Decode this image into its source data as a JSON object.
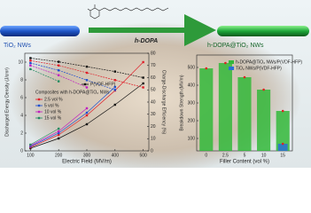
{
  "top": {
    "left_label": "TiO₂ NWs",
    "arrow_label": "h-DOPA",
    "right_label": "h-DOPA@TiO₂ NWs"
  },
  "chart_data": [
    {
      "type": "line",
      "x_label": "Electric Field (MV/m)",
      "y_label": "Discharged Energy Density (J/cm³)",
      "y2_label": "Charge-Discharge Efficiency (%)",
      "legend_heading": "Composites with h-DOPA@TiO₂ NWs",
      "x": [
        100,
        200,
        300,
        400,
        500
      ],
      "xlim": [
        80,
        520
      ],
      "xticks": [
        100,
        200,
        300,
        400,
        500
      ],
      "ylim": [
        0,
        11
      ],
      "yticks": [
        0,
        2,
        4,
        6,
        8,
        10
      ],
      "y2lim": [
        0,
        80
      ],
      "y2ticks": [
        0,
        10,
        20,
        30,
        40,
        50,
        60,
        70,
        80
      ],
      "series": [
        {
          "name": "P(VDF-HFP)",
          "color": "#111111",
          "values": [
            0.3,
            1.4,
            3.0,
            5.2,
            7.6
          ],
          "efficiency_values": [
            76,
            73,
            69,
            65,
            60
          ]
        },
        {
          "name": "2.5 vol %",
          "color": "#e0202a",
          "values": [
            0.4,
            1.8,
            4.0,
            6.8,
            10.0
          ],
          "efficiency_values": [
            74,
            70,
            64,
            58,
            52
          ]
        },
        {
          "name": "5 vol %",
          "color": "#2050d0",
          "values": [
            0.5,
            2.0,
            4.3,
            7.2,
            null
          ],
          "efficiency_values": [
            72,
            66,
            58,
            50,
            null
          ]
        },
        {
          "name": "10 vol %",
          "color": "#c020c0",
          "values": [
            0.6,
            2.2,
            4.8,
            null,
            null
          ],
          "efficiency_values": [
            70,
            62,
            52,
            null,
            null
          ]
        },
        {
          "name": "15 vol %",
          "color": "#208a60",
          "values": [
            0.7,
            2.5,
            null,
            null,
            null
          ],
          "efficiency_values": [
            67,
            57,
            null,
            null,
            null
          ]
        }
      ]
    },
    {
      "type": "bar",
      "x_label": "Filler Content (vol %)",
      "y_label": "Breakdown Strength (MV/m)",
      "categories": [
        "0",
        "2.5",
        "5",
        "10",
        "15"
      ],
      "ylim": [
        30,
        570
      ],
      "yticks": [
        100,
        200,
        300,
        400,
        500
      ],
      "series": [
        {
          "name": "h-DOPA@TiO₂ NWs/P(VDF-HFP)",
          "color": "#33b83a",
          "values": [
            495,
            525,
            445,
            375,
            255
          ]
        },
        {
          "name": "TiO₂ NWs/P(VDF-HFP)",
          "color": "#2a6fd6",
          "values": [
            null,
            null,
            null,
            null,
            70
          ]
        }
      ]
    }
  ]
}
